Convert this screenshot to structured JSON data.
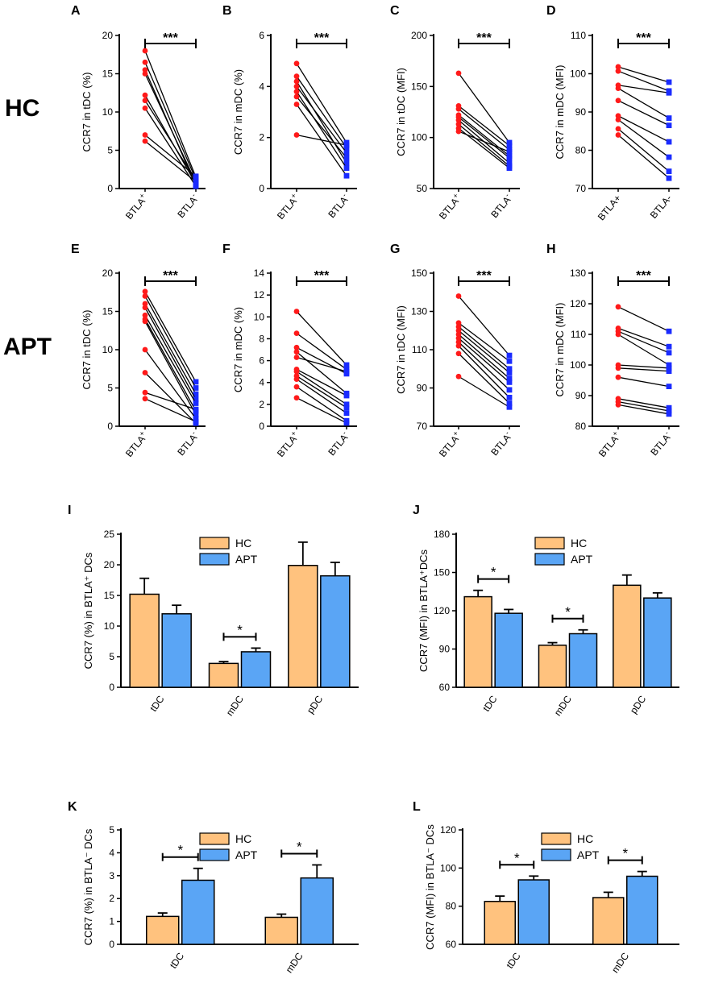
{
  "row_labels": [
    "HC",
    "APT"
  ],
  "colors": {
    "red": "#ff1a1a",
    "blue": "#1a2bff",
    "hc_bar": "#ffc27e",
    "apt_bar": "#5aa5f5",
    "line": "#000000"
  },
  "chart_data": [
    {
      "panel": "A",
      "type": "paired",
      "title": "",
      "ylabel": "CCR7 in tDC (%)",
      "ylim": [
        0,
        20
      ],
      "yticks": [
        0,
        5,
        10,
        15,
        20
      ],
      "xlabels": [
        "BTLA+",
        "BTLA-"
      ],
      "sup": [
        "+",
        "-"
      ],
      "sig": "***",
      "pairs": [
        [
          18.0,
          1.5
        ],
        [
          16.5,
          1.2
        ],
        [
          15.5,
          0.4
        ],
        [
          15.0,
          0.8
        ],
        [
          12.2,
          0.6
        ],
        [
          11.5,
          1.1
        ],
        [
          10.5,
          0.3
        ],
        [
          7.0,
          1.6
        ],
        [
          6.2,
          0.9
        ]
      ]
    },
    {
      "panel": "B",
      "type": "paired",
      "title": "",
      "ylabel": "CCR7 in mDC (%)",
      "ylim": [
        0,
        6
      ],
      "yticks": [
        0,
        2,
        4,
        6
      ],
      "xlabels": [
        "BTLA+",
        "BTLA-"
      ],
      "sup": [
        "+",
        "-"
      ],
      "sig": "***",
      "pairs": [
        [
          4.9,
          1.8
        ],
        [
          4.4,
          1.6
        ],
        [
          4.2,
          1.0
        ],
        [
          4.0,
          1.4
        ],
        [
          3.8,
          0.8
        ],
        [
          3.6,
          1.2
        ],
        [
          3.3,
          0.5
        ],
        [
          2.1,
          1.7
        ]
      ]
    },
    {
      "panel": "C",
      "type": "paired",
      "title": "",
      "ylabel": "CCR7 in tDC (MFI)",
      "ylim": [
        50,
        200
      ],
      "yticks": [
        50,
        100,
        150,
        200
      ],
      "xlabels": [
        "BTLA+",
        "BTLA-"
      ],
      "sup": [
        "+",
        "-"
      ],
      "sig": "***",
      "pairs": [
        [
          163,
          95
        ],
        [
          131,
          92
        ],
        [
          128,
          88
        ],
        [
          122,
          82
        ],
        [
          120,
          80
        ],
        [
          117,
          75
        ],
        [
          113,
          72
        ],
        [
          109,
          70
        ],
        [
          106,
          86
        ]
      ]
    },
    {
      "panel": "D",
      "type": "paired",
      "title": "",
      "ylabel": "CCR7 in mDC  (MFI)",
      "ylim": [
        70,
        110
      ],
      "yticks": [
        70,
        80,
        90,
        100,
        110
      ],
      "xlabels": [
        "BTLA+",
        "BTLA-"
      ],
      "sup": [
        "",
        ""
      ],
      "sig": "***",
      "pairs": [
        [
          101.8,
          97.8
        ],
        [
          100.7,
          95.5
        ],
        [
          97.0,
          95.0
        ],
        [
          96.2,
          88.4
        ],
        [
          93.0,
          86.5
        ],
        [
          89.0,
          82.2
        ],
        [
          88.0,
          78.2
        ],
        [
          85.6,
          74.5
        ],
        [
          84.0,
          72.7
        ]
      ]
    },
    {
      "panel": "E",
      "type": "paired",
      "title": "",
      "ylabel": "CCR7 in tDC (%)",
      "ylim": [
        0,
        20
      ],
      "yticks": [
        0,
        5,
        10,
        15,
        20
      ],
      "xlabels": [
        "BTLA+",
        "BTLA-"
      ],
      "sup": [
        "+",
        "-"
      ],
      "sig": "***",
      "pairs": [
        [
          17.6,
          5.8
        ],
        [
          17.0,
          5.0
        ],
        [
          16.0,
          4.2
        ],
        [
          15.5,
          3.5
        ],
        [
          14.5,
          3.0
        ],
        [
          14.0,
          2.0
        ],
        [
          13.7,
          1.5
        ],
        [
          10.0,
          1.0
        ],
        [
          7.0,
          0.4
        ],
        [
          4.4,
          2.2
        ],
        [
          3.6,
          0.6
        ]
      ]
    },
    {
      "panel": "F",
      "type": "paired",
      "title": "",
      "ylabel": "CCR7 in mDC (%)",
      "ylim": [
        0,
        14
      ],
      "yticks": [
        0,
        2,
        4,
        6,
        8,
        10,
        12,
        14
      ],
      "xlabels": [
        "BTLA+",
        "BTLA-"
      ],
      "sup": [
        "+",
        "-"
      ],
      "sig": "***",
      "pairs": [
        [
          10.5,
          5.6
        ],
        [
          8.5,
          5.2
        ],
        [
          7.2,
          4.8
        ],
        [
          6.8,
          3.0
        ],
        [
          6.3,
          5.0
        ],
        [
          5.2,
          2.8
        ],
        [
          5.0,
          2.0
        ],
        [
          4.6,
          1.7
        ],
        [
          4.3,
          1.2
        ],
        [
          3.6,
          0.5
        ],
        [
          2.6,
          0.3
        ]
      ]
    },
    {
      "panel": "G",
      "type": "paired",
      "title": "",
      "ylabel": "CCR7 in tDC (MFI)",
      "ylim": [
        70,
        150
      ],
      "yticks": [
        70,
        90,
        110,
        130,
        150
      ],
      "xlabels": [
        "BTLA+",
        "BTLA-"
      ],
      "sup": [
        "+",
        "-"
      ],
      "sig": "***",
      "pairs": [
        [
          138,
          107
        ],
        [
          124,
          104
        ],
        [
          122,
          100
        ],
        [
          120,
          98
        ],
        [
          118,
          95
        ],
        [
          116,
          93
        ],
        [
          114,
          89
        ],
        [
          112,
          85
        ],
        [
          108,
          82
        ],
        [
          96,
          80
        ]
      ]
    },
    {
      "panel": "H",
      "type": "paired",
      "title": "",
      "ylabel": "CCR7 in mDC  (MFI)",
      "ylim": [
        80,
        130
      ],
      "yticks": [
        80,
        90,
        100,
        110,
        120,
        130
      ],
      "xlabels": [
        "BTLA+",
        "BTLA-"
      ],
      "sup": [
        "+",
        "-"
      ],
      "sig": "***",
      "pairs": [
        [
          119,
          111
        ],
        [
          112,
          106
        ],
        [
          111,
          104
        ],
        [
          110,
          100
        ],
        [
          100,
          99
        ],
        [
          99,
          98
        ],
        [
          96,
          93
        ],
        [
          89,
          86
        ],
        [
          88,
          85
        ],
        [
          87,
          84
        ]
      ]
    },
    {
      "panel": "I",
      "type": "bar",
      "ylabel": "CCR7 (%) in BTLA⁺ DCs",
      "ylim": [
        0,
        25
      ],
      "yticks": [
        0,
        5,
        10,
        15,
        20,
        25
      ],
      "categories": [
        "tDC",
        "mDC",
        "pDC"
      ],
      "series": [
        {
          "name": "HC",
          "values": [
            15.2,
            3.9,
            19.9
          ],
          "errors": [
            2.6,
            0.3,
            3.8
          ]
        },
        {
          "name": "APT",
          "values": [
            12.0,
            5.8,
            18.2
          ],
          "errors": [
            1.4,
            0.6,
            2.2
          ]
        }
      ],
      "sig": [
        {
          "category": 1,
          "label": "*"
        }
      ]
    },
    {
      "panel": "J",
      "type": "bar",
      "ylabel": "CCR7 (MFI) in BTLA⁺DCs",
      "ylim": [
        60,
        180
      ],
      "yticks": [
        60,
        90,
        120,
        150,
        180
      ],
      "categories": [
        "tDC",
        "mDC",
        "pDC"
      ],
      "series": [
        {
          "name": "HC",
          "values": [
            131,
            93,
            140
          ],
          "errors": [
            5,
            2,
            8
          ]
        },
        {
          "name": "APT",
          "values": [
            118,
            102,
            130
          ],
          "errors": [
            3,
            3,
            4
          ]
        }
      ],
      "sig": [
        {
          "category": 0,
          "label": "*"
        },
        {
          "category": 1,
          "label": "*"
        }
      ]
    },
    {
      "panel": "K",
      "type": "bar",
      "ylabel": "CCR7 (%) in BTLA⁻ DCs",
      "ylim": [
        0,
        5
      ],
      "yticks": [
        0,
        1,
        2,
        3,
        4,
        5
      ],
      "categories": [
        "tDC",
        "mDC"
      ],
      "series": [
        {
          "name": "HC",
          "values": [
            1.22,
            1.18
          ],
          "errors": [
            0.15,
            0.14
          ]
        },
        {
          "name": "APT",
          "values": [
            2.8,
            2.9
          ],
          "errors": [
            0.52,
            0.57
          ]
        }
      ],
      "sig": [
        {
          "category": 0,
          "label": "*"
        },
        {
          "category": 1,
          "label": "*"
        }
      ]
    },
    {
      "panel": "L",
      "type": "bar",
      "ylabel": "CCR7 (MFI) in BTLA⁻ DCs",
      "ylim": [
        60,
        120
      ],
      "yticks": [
        60,
        80,
        100,
        120
      ],
      "categories": [
        "tDC",
        "mDC"
      ],
      "series": [
        {
          "name": "HC",
          "values": [
            82.5,
            84.5
          ],
          "errors": [
            2.8,
            2.8
          ]
        },
        {
          "name": "APT",
          "values": [
            93.8,
            95.7
          ],
          "errors": [
            2.0,
            2.5
          ]
        }
      ],
      "sig": [
        {
          "category": 0,
          "label": "*"
        },
        {
          "category": 1,
          "label": "*"
        }
      ]
    }
  ]
}
